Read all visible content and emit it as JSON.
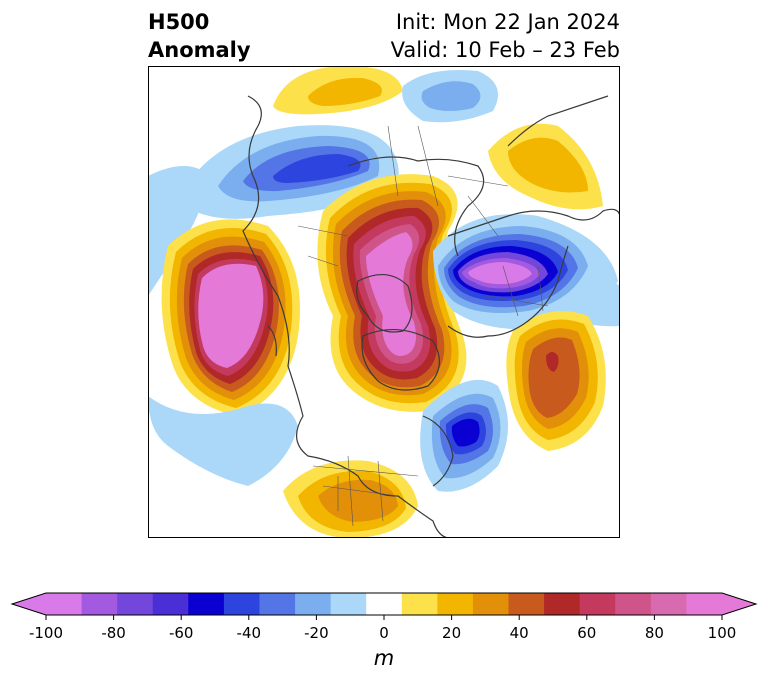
{
  "title": {
    "left_line1": "H500",
    "left_line2": "Anomaly",
    "right_line1": "Init: Mon 22 Jan 2024",
    "right_line2": "Valid: 10 Feb – 23 Feb"
  },
  "colorbar": {
    "unit": "m",
    "ticks": [
      "-100",
      "-80",
      "-60",
      "-40",
      "-20",
      "0",
      "20",
      "40",
      "60",
      "80",
      "100"
    ],
    "tick_values": [
      -100,
      -80,
      -60,
      -40,
      -20,
      0,
      20,
      40,
      60,
      80,
      100
    ],
    "levels": [
      -100,
      -90,
      -80,
      -70,
      -60,
      -50,
      -40,
      -30,
      -20,
      -10,
      10,
      20,
      30,
      40,
      50,
      60,
      70,
      80,
      90,
      100
    ],
    "colors": [
      "#d87be8",
      "#a35ae0",
      "#7347dc",
      "#4a2ed6",
      "#0a00d2",
      "#2e44de",
      "#5475e6",
      "#7aaeee",
      "#abd8f8",
      "#ffffff",
      "#fde14a",
      "#f2b500",
      "#e28f0a",
      "#c85a1e",
      "#b02828",
      "#c43a5e",
      "#cf548a",
      "#d86ab0",
      "#e479d8"
    ],
    "extend_low_color": "#d87be8",
    "extend_high_color": "#e479d8"
  },
  "map": {
    "projection": "north-polar-stereographic",
    "field": "500 hPa geopotential height anomaly"
  }
}
